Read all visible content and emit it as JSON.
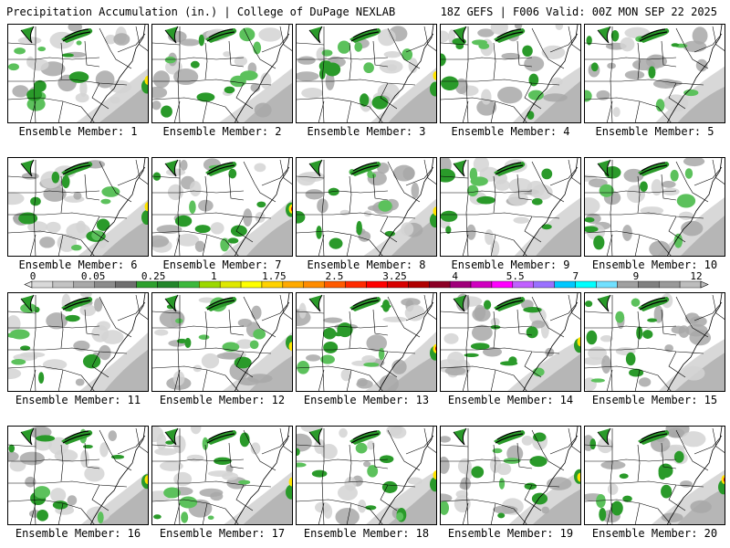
{
  "header": {
    "title_left": "Precipitation Accumulation (in.) | College of DuPage NEXLAB",
    "title_right": "18Z GEFS | F006 Valid: 00Z MON SEP 22 2025"
  },
  "members": [
    {
      "label": "Ensemble Member: 1",
      "hot": 1
    },
    {
      "label": "Ensemble Member: 2",
      "hot": 0
    },
    {
      "label": "Ensemble Member: 3",
      "hot": 1
    },
    {
      "label": "Ensemble Member: 4",
      "hot": 0
    },
    {
      "label": "Ensemble Member: 5",
      "hot": 0
    },
    {
      "label": "Ensemble Member: 6",
      "hot": 1
    },
    {
      "label": "Ensemble Member: 7",
      "hot": 2
    },
    {
      "label": "Ensemble Member: 8",
      "hot": 1
    },
    {
      "label": "Ensemble Member: 9",
      "hot": 0
    },
    {
      "label": "Ensemble Member: 10",
      "hot": 0
    },
    {
      "label": "Ensemble Member: 11",
      "hot": 0
    },
    {
      "label": "Ensemble Member: 12",
      "hot": 1
    },
    {
      "label": "Ensemble Member: 13",
      "hot": 2
    },
    {
      "label": "Ensemble Member: 14",
      "hot": 1
    },
    {
      "label": "Ensemble Member: 15",
      "hot": 0
    },
    {
      "label": "Ensemble Member: 16",
      "hot": 1
    },
    {
      "label": "Ensemble Member: 17",
      "hot": 1
    },
    {
      "label": "Ensemble Member: 18",
      "hot": 1
    },
    {
      "label": "Ensemble Member: 19",
      "hot": 1
    },
    {
      "label": "Ensemble Member: 20",
      "hot": 2
    }
  ],
  "legend": {
    "labels": [
      "0",
      "0.05",
      "0.25",
      "1",
      "1.75",
      "2.5",
      "3.25",
      "4",
      "5.5",
      "7",
      "9",
      "12"
    ],
    "colors": [
      "#d9d9d9",
      "#c3c3c3",
      "#a8a8a8",
      "#8c8c8c",
      "#6f6f6f",
      "#2ea02e",
      "#22862a",
      "#3cb83c",
      "#9bd800",
      "#dfe800",
      "#ffff00",
      "#ffd200",
      "#ffaa00",
      "#ff8c00",
      "#ff5a00",
      "#ff2a00",
      "#ff0000",
      "#d80000",
      "#b00000",
      "#8c0026",
      "#a0007a",
      "#d000c0",
      "#ff00ff",
      "#c060ff",
      "#9a70ff",
      "#00c8ff",
      "#00ffff",
      "#70e0ff",
      "#a0a0a0",
      "#808080",
      "#9a9a9a",
      "#bdbdbd"
    ]
  },
  "colors": {
    "gray_light": "#d4d4d4",
    "gray_mid": "#a8a8a8",
    "green": "#2a9a2a",
    "green_light": "#5cc15c",
    "yellow": "#ffe400",
    "orange": "#ff8c00",
    "red": "#e0001a"
  }
}
